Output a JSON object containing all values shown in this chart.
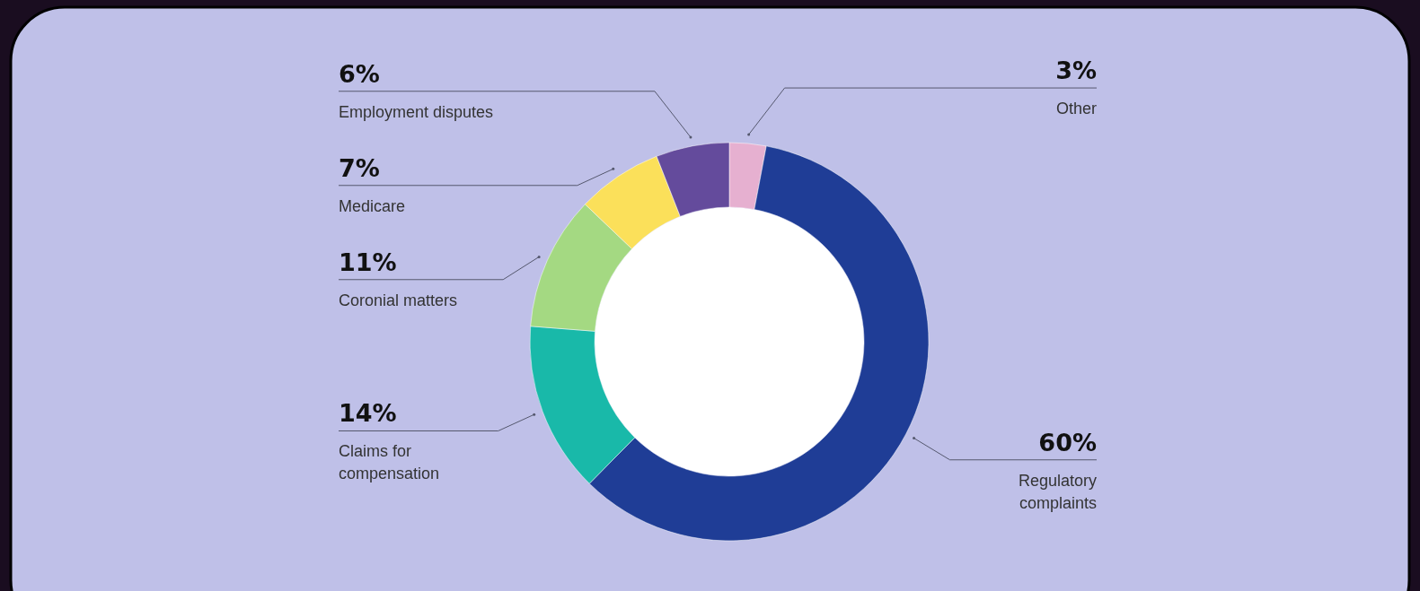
{
  "chart_data": {
    "type": "donut",
    "categories": [
      "Other",
      "Regulatory complaints",
      "Claims for compensation",
      "Coronial matters",
      "Medicare",
      "Employment disputes"
    ],
    "values": [
      3,
      60,
      14,
      11,
      7,
      6
    ],
    "value_labels": [
      "3%",
      "60%",
      "14%",
      "11%",
      "7%",
      "6%"
    ],
    "colors": [
      "#e6b0d0",
      "#1f3d96",
      "#19b9a9",
      "#a4d982",
      "#fbe05a",
      "#644b9c"
    ]
  }
}
